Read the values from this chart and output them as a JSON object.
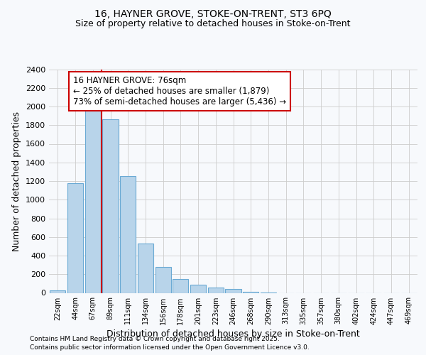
{
  "title1": "16, HAYNER GROVE, STOKE-ON-TRENT, ST3 6PQ",
  "title2": "Size of property relative to detached houses in Stoke-on-Trent",
  "xlabel": "Distribution of detached houses by size in Stoke-on-Trent",
  "ylabel": "Number of detached properties",
  "annotation_line1": "16 HAYNER GROVE: 76sqm",
  "annotation_line2": "← 25% of detached houses are smaller (1,879)",
  "annotation_line3": "73% of semi-detached houses are larger (5,436) →",
  "footer1": "Contains HM Land Registry data © Crown copyright and database right 2025.",
  "footer2": "Contains public sector information licensed under the Open Government Licence v3.0.",
  "bar_color": "#b8d4ea",
  "bar_edge_color": "#6aaad4",
  "marker_color": "#cc0000",
  "categories": [
    "22sqm",
    "44sqm",
    "67sqm",
    "89sqm",
    "111sqm",
    "134sqm",
    "156sqm",
    "178sqm",
    "201sqm",
    "223sqm",
    "246sqm",
    "268sqm",
    "290sqm",
    "313sqm",
    "335sqm",
    "357sqm",
    "380sqm",
    "402sqm",
    "424sqm",
    "447sqm",
    "469sqm"
  ],
  "values": [
    25,
    1175,
    1980,
    1860,
    1250,
    530,
    280,
    150,
    90,
    55,
    40,
    15,
    5,
    0,
    0,
    0,
    0,
    0,
    0,
    0,
    0
  ],
  "ylim": [
    0,
    2400
  ],
  "yticks": [
    0,
    200,
    400,
    600,
    800,
    1000,
    1200,
    1400,
    1600,
    1800,
    2000,
    2200,
    2400
  ],
  "red_line_x": 2.5,
  "background_color": "#f7f9fc"
}
